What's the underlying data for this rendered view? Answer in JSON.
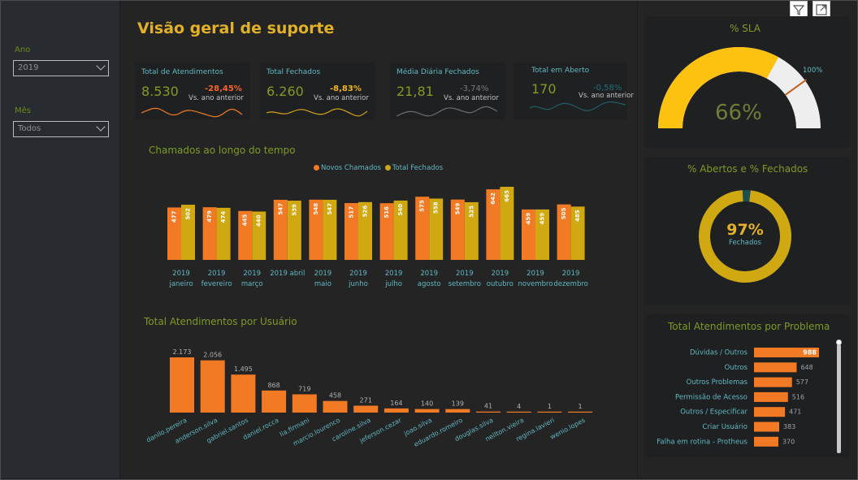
{
  "filters": [
    {
      "label": "Ano",
      "value": "2019"
    },
    {
      "label": "Mês",
      "value": "Todos"
    }
  ],
  "title": "Visão geral de suporte",
  "colors": {
    "orange": "#f27a24",
    "gold": "#cfa812",
    "teal": "#60b8c2",
    "olive": "#7c9b24",
    "yellow": "#fdc20f"
  },
  "kpis": [
    {
      "title": "Total de Atendimentos",
      "value": "8.530",
      "change": "-28,45%",
      "change_color": "#f6642c",
      "sub": "Vs. ano anterior",
      "line_color": "#f27a24"
    },
    {
      "title": "Total Fechados",
      "value": "6.260",
      "change": "-8,83%",
      "change_color": "#f2b41c",
      "sub": "Vs. ano anterior",
      "line_color": "#d7a516"
    },
    {
      "title": "Média Diária Fechados",
      "value": "21,81",
      "change": "-3,74%",
      "change_color": "#7a7a7a",
      "sub": "Vs. ano anterior",
      "line_color": "#6d6d6d"
    },
    {
      "title": "Total em Aberto",
      "value": "170",
      "change": "-0,58%",
      "change_color": "#1f6f78",
      "sub": "Vs. ano anterior",
      "line_color": "#1f5e66"
    }
  ],
  "chamados": {
    "title": "Chamados ao longo do tempo",
    "legend": [
      "Novos Chamados",
      "Total Fechados"
    ]
  },
  "usuarios": {
    "title": "Total Atendimentos por Usuário"
  },
  "sla": {
    "title": "% SLA",
    "value_label": "66%",
    "target_label": "100%",
    "value": 0.66
  },
  "abertos": {
    "title": "% Abertos e % Fechados",
    "value_label": "97%",
    "sub_label": "Fechados",
    "closed_fraction": 0.97
  },
  "problemas": {
    "title": "Total Atendimentos por Problema"
  },
  "chart_data": [
    {
      "type": "bar",
      "title": "Chamados ao longo do tempo",
      "categories": [
        "2019 janeiro",
        "2019 fevereiro",
        "2019 março",
        "2019 abril",
        "2019 maio",
        "2019 junho",
        "2019 julho",
        "2019 agosto",
        "2019 setembro",
        "2019 outubro",
        "2019 novembro",
        "2019 dezembro"
      ],
      "category_lines": [
        [
          "2019",
          "janeiro"
        ],
        [
          "2019",
          "fevereiro"
        ],
        [
          "2019",
          "março"
        ],
        [
          "2019 abril",
          ""
        ],
        [
          "2019",
          "maio"
        ],
        [
          "2019",
          "junho"
        ],
        [
          "2019",
          "julho"
        ],
        [
          "2019",
          "agosto"
        ],
        [
          "2019",
          "setembro"
        ],
        [
          "2019",
          "outubro"
        ],
        [
          "2019",
          "novembro"
        ],
        [
          "2019",
          "dezembro"
        ]
      ],
      "series": [
        {
          "name": "Novos Chamados",
          "values": [
            477,
            479,
            445,
            547,
            548,
            517,
            516,
            575,
            549,
            642,
            459,
            505
          ],
          "color": "#f27a24"
        },
        {
          "name": "Total Fechados",
          "values": [
            502,
            474,
            440,
            539,
            547,
            526,
            540,
            558,
            525,
            665,
            459,
            485
          ],
          "color": "#cfa812"
        }
      ],
      "legend": "top"
    },
    {
      "type": "bar",
      "title": "Total Atendimentos por Usuário",
      "categories": [
        "danilo.pereira",
        "anderson.silva",
        "gabriel.santos",
        "daniel.rocca",
        "lia.firmani",
        "marcio.lourenco",
        "caroline.silva",
        "jeferson.cezar",
        "joao.silva",
        "eduardo.romeiro",
        "douglas.silva",
        "neilton.vieira",
        "regina.lavieri",
        "wenio.lopes"
      ],
      "labels": [
        "2.173",
        "2.056",
        "1.495",
        "868",
        "719",
        "458",
        "271",
        "164",
        "140",
        "139",
        "41",
        "4",
        "1",
        "1"
      ],
      "values": [
        2173,
        2056,
        1495,
        868,
        719,
        458,
        271,
        164,
        140,
        139,
        41,
        4,
        1,
        1
      ],
      "color": "#f27a24"
    },
    {
      "type": "bar",
      "title": "Total Atendimentos por Problema",
      "orientation": "horizontal",
      "categories": [
        "Dúvidas / Outros",
        "Outros",
        "Outros Problemas",
        "Permissão de Acesso",
        "Outros / Especificar",
        "Criar Usuário",
        "Falha em rotina - Protheus"
      ],
      "values": [
        988,
        648,
        577,
        516,
        471,
        383,
        370
      ],
      "color": "#f27a24"
    },
    {
      "type": "pie",
      "title": "% Abertos e % Fechados",
      "categories": [
        "Fechados",
        "Abertos"
      ],
      "values": [
        97,
        3
      ]
    }
  ]
}
